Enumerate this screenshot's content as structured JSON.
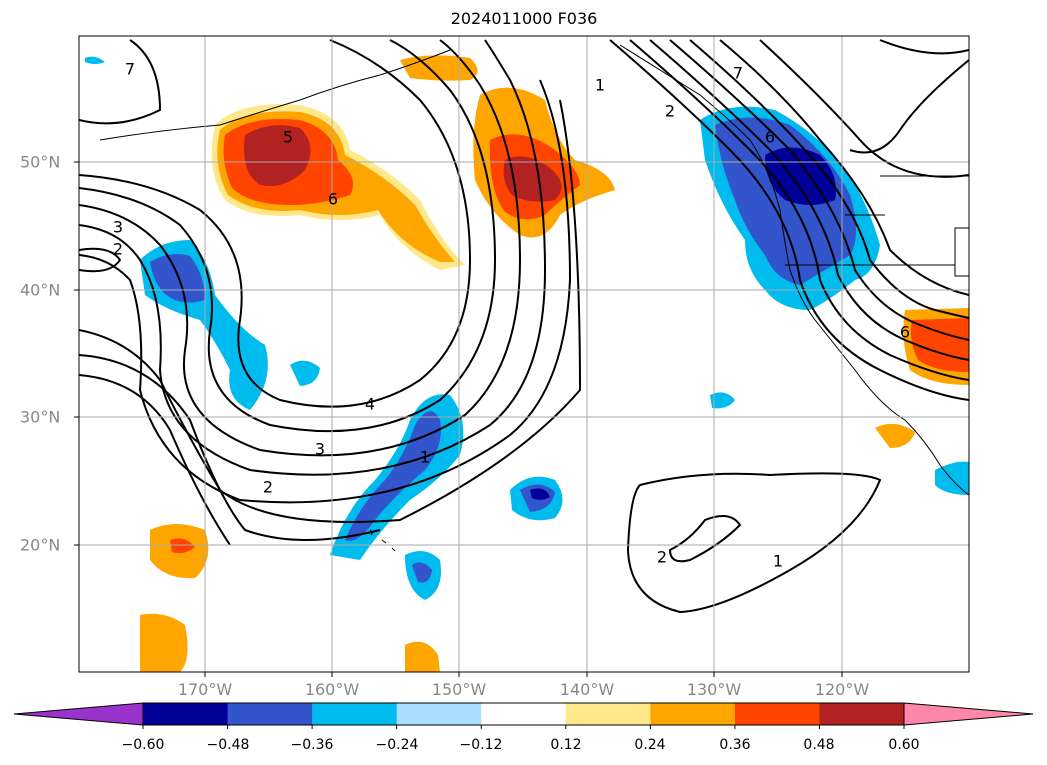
{
  "title": "2024011000 F036",
  "map": {
    "longitude_labels": [
      "170°W",
      "160°W",
      "150°W",
      "140°W",
      "130°W",
      "120°W"
    ],
    "latitude_labels": [
      "50°N",
      "40°N",
      "30°N",
      "20°N"
    ],
    "contour_labels": [
      "7",
      "5",
      "6",
      "3",
      "2",
      "4",
      "3",
      "2",
      "1",
      "1",
      "2",
      "6",
      "7",
      "6",
      "2",
      "1"
    ]
  },
  "colorbar": {
    "ticks": [
      "−0.60",
      "−0.48",
      "−0.36",
      "−0.24",
      "−0.12",
      "0.12",
      "0.24",
      "0.36",
      "0.48",
      "0.60"
    ],
    "colors": [
      "#9933cc",
      "#000099",
      "#3355cc",
      "#00bbee",
      "#aaddff",
      "#ffffff",
      "#ffe88a",
      "#ffa500",
      "#ff4400",
      "#b22222",
      "#ff88aa"
    ]
  }
}
